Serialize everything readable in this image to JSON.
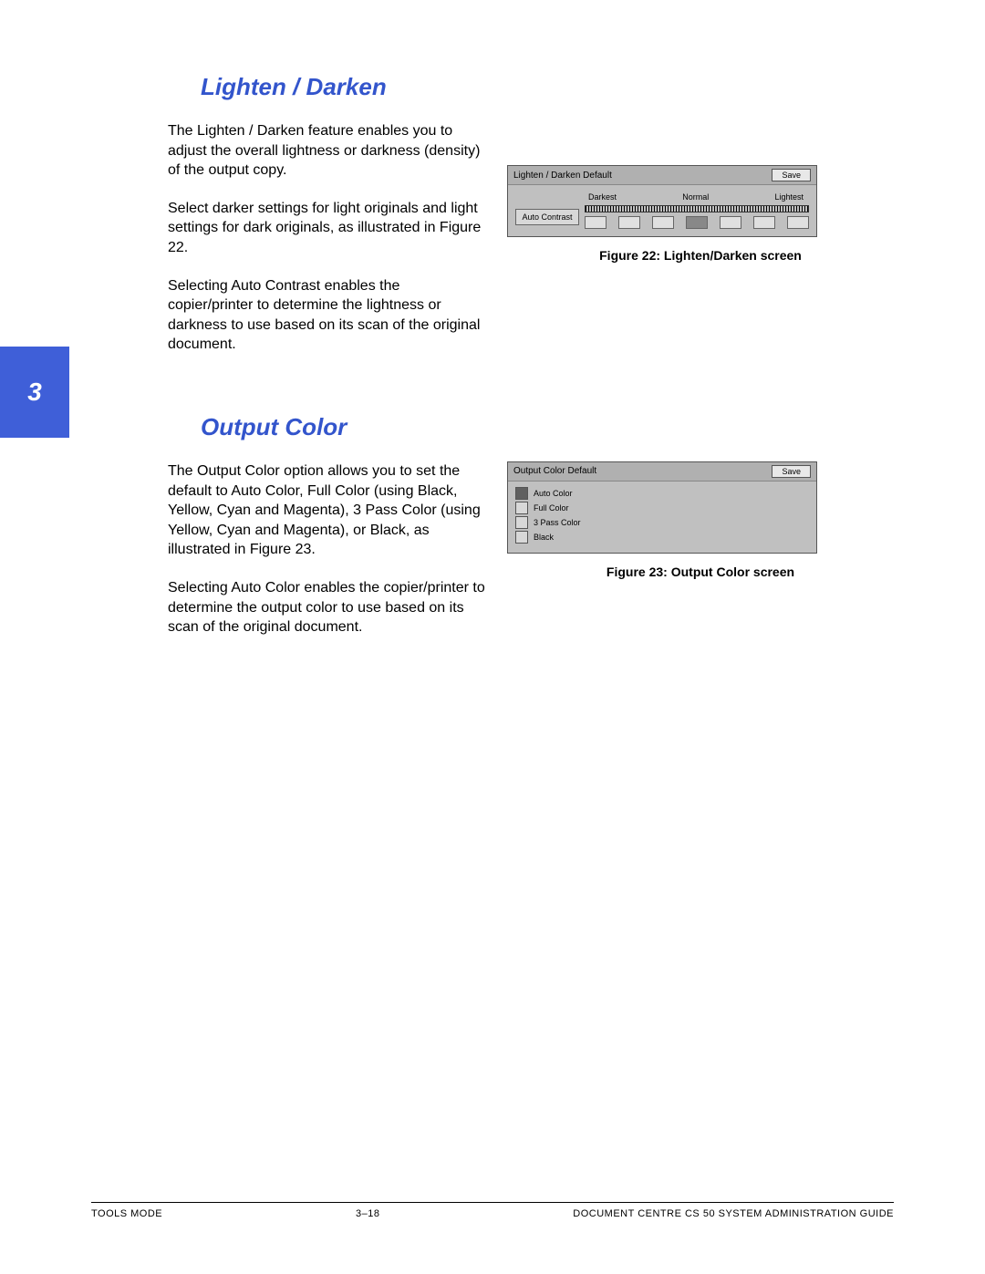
{
  "sideTab": "3",
  "section1": {
    "heading": "Lighten / Darken",
    "paragraphs": [
      "The Lighten / Darken feature enables you to adjust the overall lightness or darkness (density) of the output copy.",
      "Select darker settings for light originals and light settings for dark originals, as illustrated in Figure 22.",
      "Selecting Auto Contrast enables the copier/printer to determine the lightness or darkness to use based on its scan of the original document."
    ],
    "figure": {
      "caption": "Figure 22: Lighten/Darken screen",
      "title": "Lighten / Darken Default",
      "save": "Save",
      "autoContrast": "Auto Contrast",
      "labels": {
        "darkest": "Darkest",
        "normal": "Normal",
        "lightest": "Lightest"
      }
    }
  },
  "section2": {
    "heading": "Output Color",
    "paragraphs": [
      "The Output Color option allows you to set the default to Auto Color, Full Color (using Black, Yellow, Cyan and Magenta), 3 Pass Color (using Yellow, Cyan and Magenta), or Black, as illustrated in Figure 23.",
      "Selecting Auto Color enables the copier/printer to determine the output color to use based on its scan of the original document."
    ],
    "figure": {
      "caption": "Figure 23: Output Color screen",
      "title": "Output Color Default",
      "save": "Save",
      "options": [
        "Auto Color",
        "Full Color",
        "3 Pass Color",
        "Black"
      ]
    }
  },
  "footer": {
    "left": "TOOLS MODE",
    "center": "3–18",
    "right": "DOCUMENT CENTRE CS 50 SYSTEM ADMINISTRATION GUIDE"
  },
  "colors": {
    "headingBlue": "#3355cc",
    "tabBlue": "#3f5fd8",
    "screenshotBg": "#c0c0c0"
  },
  "typography": {
    "heading_fontsize": 26,
    "body_fontsize": 16,
    "caption_fontsize": 14,
    "footer_fontsize": 11
  }
}
